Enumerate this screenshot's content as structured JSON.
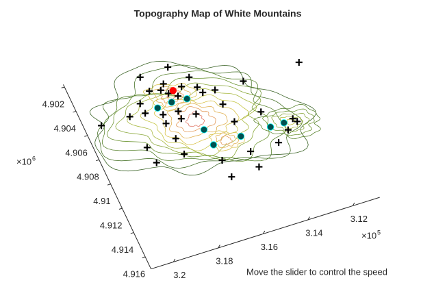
{
  "chart_data": {
    "type": "scatter3d",
    "title": "Topography Map of White Mountains",
    "xlim": [
      3.108,
      3.21
    ],
    "ylim": [
      4.9018,
      4.917
    ],
    "xticks": [
      3.12,
      3.14,
      3.16,
      3.18,
      3.2
    ],
    "yticks": [
      4.902,
      4.904,
      4.906,
      4.908,
      4.91,
      4.912,
      4.914,
      4.916
    ],
    "x_scale": {
      "base": "×10",
      "exponent": "5"
    },
    "y_scale": {
      "base": "×10",
      "exponent": "6"
    },
    "series": [
      {
        "marker": "plus",
        "color": "#000000",
        "x": [
          3.1788,
          3.1662,
          3.1598,
          3.1778,
          3.1732,
          3.171,
          3.1645,
          3.1585,
          3.1573,
          3.1521,
          3.1395,
          3.1144,
          3.1837,
          3.1901,
          3.1835,
          3.1768,
          3.1773,
          3.1703,
          3.1705,
          3.1639,
          3.1517,
          3.1504,
          3.1383,
          3.2028,
          3.1891,
          3.1763,
          3.1759,
          3.1882,
          3.1623,
          3.1617,
          3.1492,
          3.1496,
          3.1371,
          3.1311,
          3.1272,
          3.126,
          3.1708,
          3.1676
        ],
        "y": [
          4.903,
          4.9029,
          4.9041,
          4.9042,
          4.9044,
          4.904,
          4.9046,
          4.905,
          4.9055,
          4.9056,
          4.9056,
          4.9055,
          4.9049,
          4.9056,
          4.9057,
          4.9062,
          4.9069,
          4.9063,
          4.9069,
          4.9069,
          4.9068,
          4.9083,
          4.9082,
          4.9056,
          4.9082,
          4.9082,
          4.9095,
          4.9095,
          4.9108,
          4.9122,
          4.9121,
          4.9108,
          4.9108,
          4.9101,
          4.9094,
          4.9097,
          4.9048,
          4.9052
        ]
      },
      {
        "marker": "circle",
        "color": "#00504f",
        "edgecolor": "#00ffff",
        "x": [
          3.1777,
          3.1712,
          3.1646,
          3.1637,
          3.1628,
          3.1506,
          3.1374,
          3.1314
        ],
        "y": [
          4.9056,
          4.9055,
          4.9056,
          4.9082,
          4.9095,
          4.9095,
          4.9095,
          4.9095
        ]
      },
      {
        "marker": "circle",
        "color": "#ff0000",
        "edgecolor": "#ff0000",
        "x": [
          3.1685
        ],
        "y": [
          4.9047
        ]
      }
    ]
  },
  "caption": "Move the slider to control the speed"
}
